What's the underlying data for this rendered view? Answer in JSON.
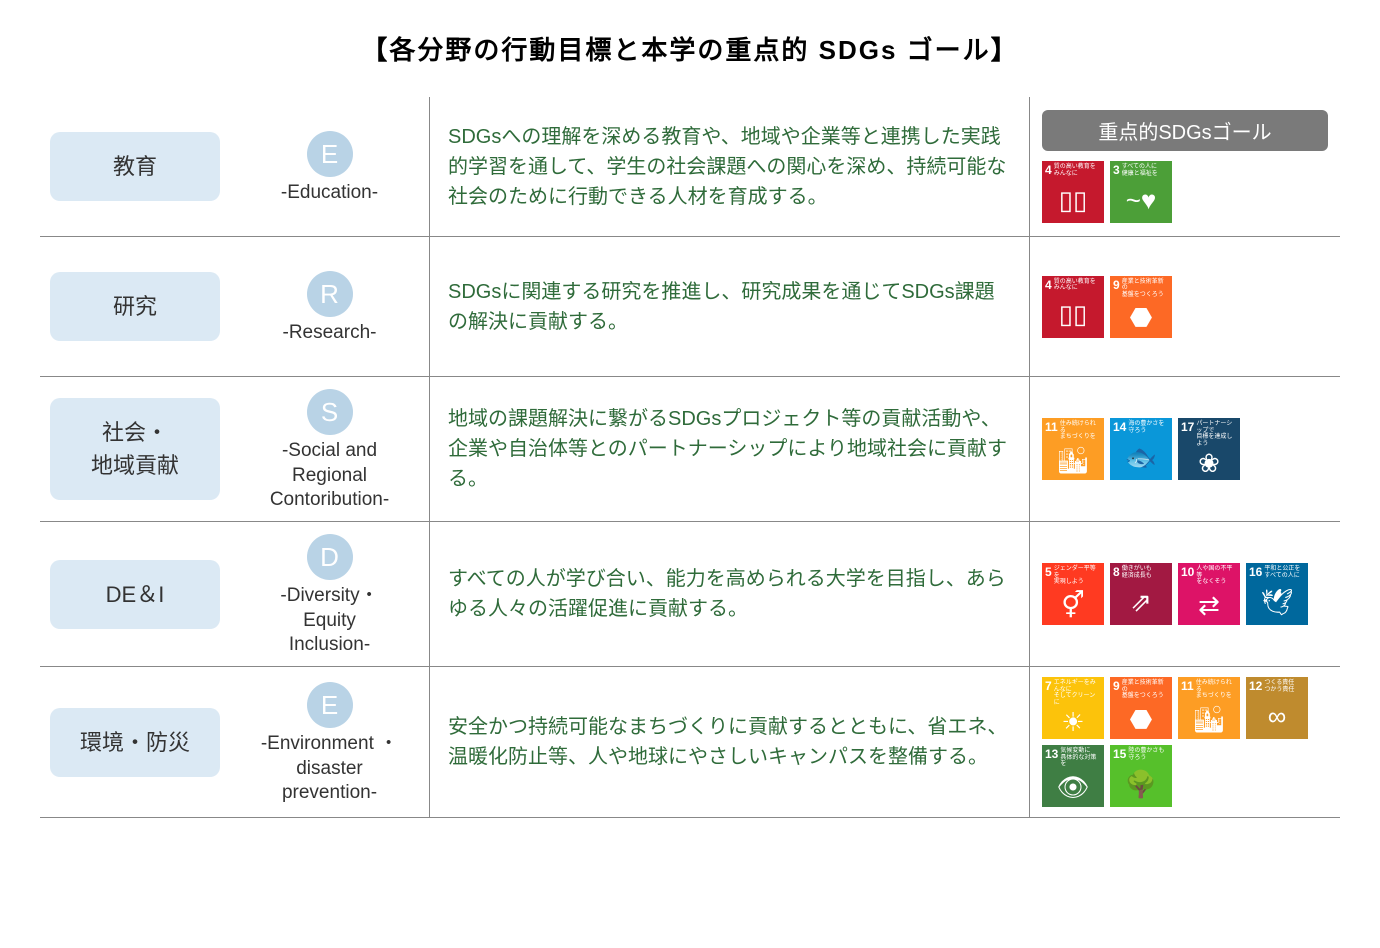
{
  "title": "【各分野の行動目標と本学の重点的 SDGs ゴール】",
  "sdgsHeader": "重点的SDGsゴール",
  "colors": {
    "fieldBox": "#dbe9f4",
    "letterCircle": "#b9d3e6",
    "descText": "#2f6b3a",
    "headerBg": "#7a7a7a",
    "divider": "#888888"
  },
  "sdgDefs": {
    "3": {
      "color": "#4c9f38",
      "label": "すべての人に\n健康と福祉を",
      "glyph": "~♥"
    },
    "4": {
      "color": "#c5192d",
      "label": "質の高い教育を\nみんなに",
      "glyph": "▯▯"
    },
    "5": {
      "color": "#ff3a21",
      "label": "ジェンダー平等を\n実現しよう",
      "glyph": "⚥"
    },
    "7": {
      "color": "#fcc30b",
      "label": "エネルギーをみんなに\nそしてクリーンに",
      "glyph": "☀"
    },
    "8": {
      "color": "#a21942",
      "label": "働きがいも\n経済成長も",
      "glyph": "⇗"
    },
    "9": {
      "color": "#fd6925",
      "label": "産業と技術革新の\n基盤をつくろう",
      "glyph": "⬣"
    },
    "10": {
      "color": "#dd1367",
      "label": "人や国の不平等\nをなくそう",
      "glyph": "⇄"
    },
    "11": {
      "color": "#fd9d24",
      "label": "住み続けられる\nまちづくりを",
      "glyph": "🏙"
    },
    "12": {
      "color": "#bf8b2e",
      "label": "つくる責任\nつかう責任",
      "glyph": "∞"
    },
    "13": {
      "color": "#3f7e44",
      "label": "気候変動に\n具体的な対策を",
      "glyph": "👁"
    },
    "14": {
      "color": "#0a97d9",
      "label": "海の豊かさを\n守ろう",
      "glyph": "🐟"
    },
    "15": {
      "color": "#56c02b",
      "label": "陸の豊かさも\n守ろう",
      "glyph": "🌳"
    },
    "16": {
      "color": "#00689d",
      "label": "平和と公正を\nすべての人に",
      "glyph": "🕊"
    },
    "17": {
      "color": "#19486a",
      "label": "パートナーシップで\n目標を達成しよう",
      "glyph": "❀"
    }
  },
  "rows": [
    {
      "field": "教育",
      "letter": "E",
      "letterLabel": "-Education-",
      "desc": "SDGsへの理解を深める教育や、地域や企業等と連携した実践的学習を通して、学生の社会課題への関心を深め、持続可能な社会のために行動できる人材を育成する。",
      "sdgs": [
        "4",
        "3"
      ],
      "showHeader": true
    },
    {
      "field": "研究",
      "letter": "R",
      "letterLabel": "-Research-",
      "desc": "SDGsに関連する研究を推進し、研究成果を通じてSDGs課題の解決に貢献する。",
      "sdgs": [
        "4",
        "9"
      ]
    },
    {
      "field": "社会・\n地域貢献",
      "letter": "S",
      "letterLabel": "-Social and\nRegional\nContoribution-",
      "desc": "地域の課題解決に繋がるSDGsプロジェクト等の貢献活動や、企業や自治体等とのパートナーシップにより地域社会に貢献する。",
      "sdgs": [
        "11",
        "14",
        "17"
      ]
    },
    {
      "field": "DE＆I",
      "letter": "D",
      "letterLabel": "-Diversity・\nEquity\nInclusion-",
      "desc": "すべての人が学び合い、能力を高められる大学を目指し、あらゆる人々の活躍促進に貢献する。",
      "sdgs": [
        "5",
        "8",
        "10",
        "16"
      ]
    },
    {
      "field": "環境・防災",
      "letter": "E",
      "letterLabel": "-Environment ・\ndisaster\nprevention-",
      "desc": "安全かつ持続可能なまちづくりに貢献するとともに、省エネ、温暖化防止等、人や地球にやさしいキャンパスを整備する。",
      "sdgs": [
        "7",
        "9",
        "11",
        "12",
        "13",
        "15"
      ]
    }
  ]
}
